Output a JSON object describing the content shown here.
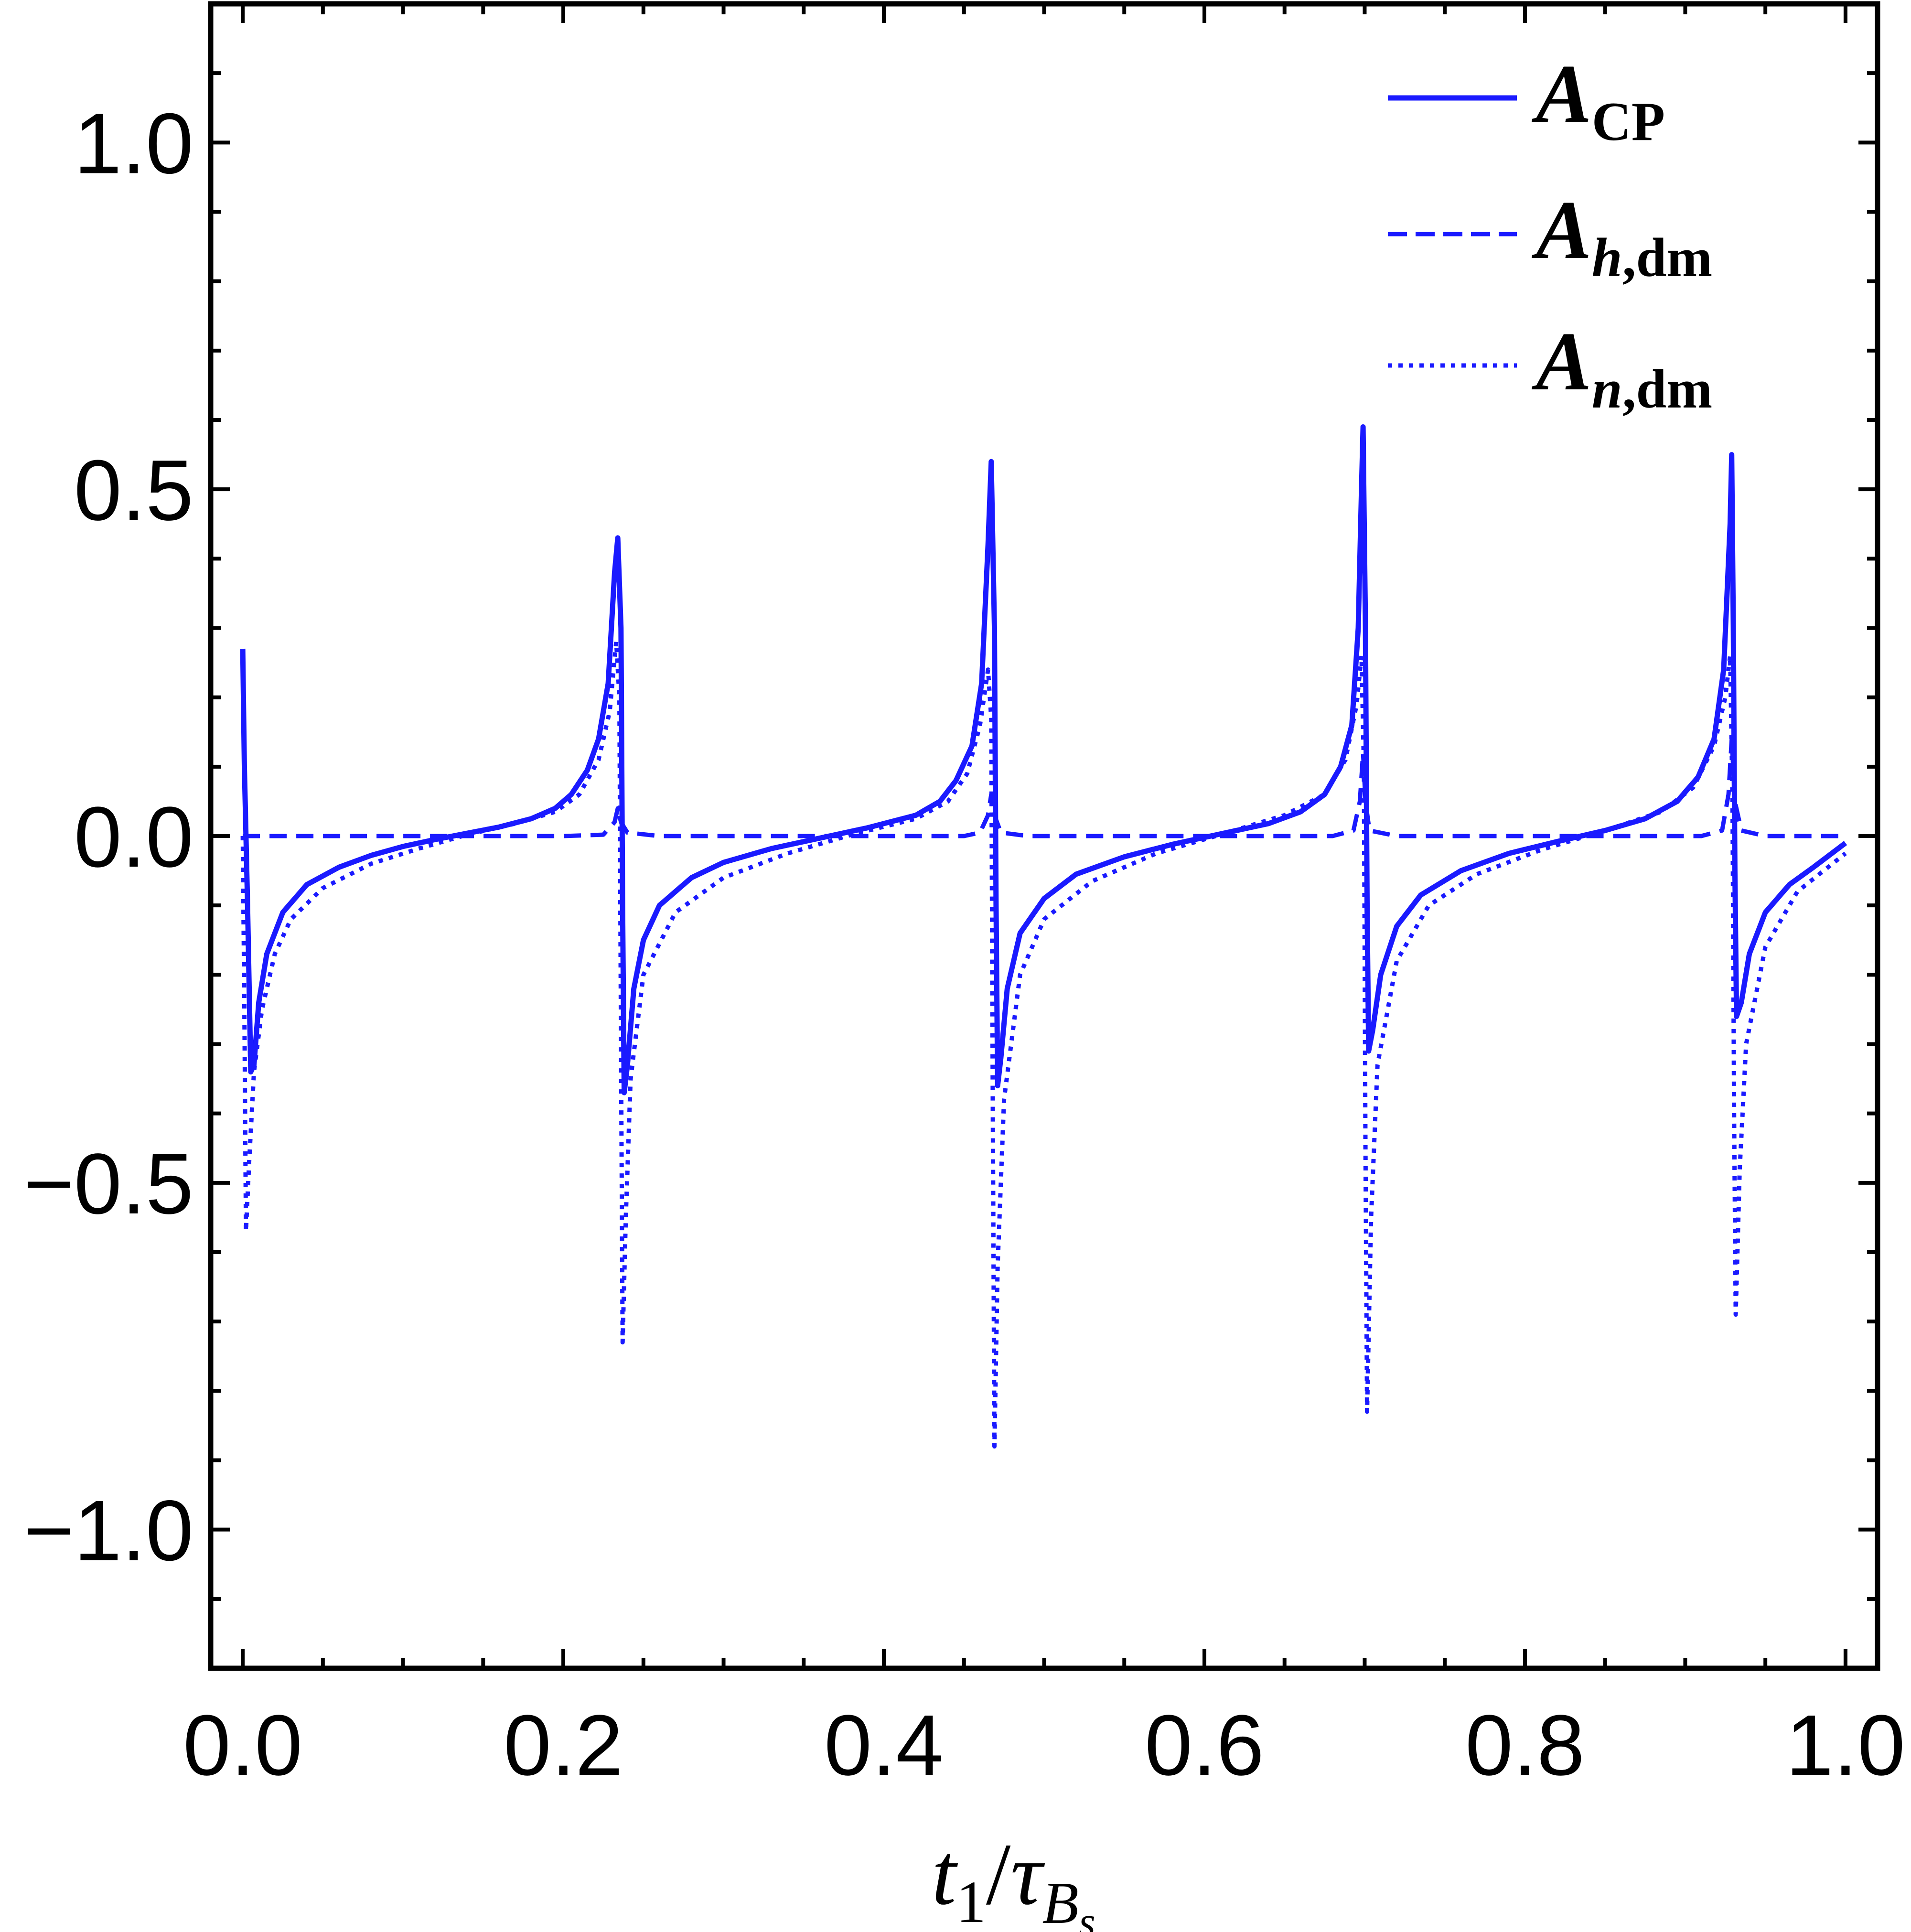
{
  "chart_data": {
    "type": "line",
    "title": "",
    "xlabel": {
      "base": "t",
      "sub1": "1",
      "sep": "/",
      "tau": "τ",
      "subB": "B",
      "subs": "s"
    },
    "ylabel": "",
    "xlim": [
      -0.02,
      1.02
    ],
    "ylim": [
      -1.2,
      1.2
    ],
    "x_ticks": [
      0.0,
      0.2,
      0.4,
      0.6,
      0.8,
      1.0
    ],
    "x_tick_labels": [
      "0.0",
      "0.2",
      "0.4",
      "0.6",
      "0.8",
      "1.0"
    ],
    "y_ticks": [
      -1.0,
      -0.5,
      0.0,
      0.5,
      1.0
    ],
    "y_tick_labels": [
      "−1.0",
      "−0.5",
      "0.0",
      "0.5",
      "1.0"
    ],
    "grid": false,
    "legend_position": "top-right",
    "color": "#1a1aff",
    "series": [
      {
        "legend": {
          "main": "A",
          "sub": "CP"
        },
        "style": "solid",
        "points": [
          [
            0.0,
            0.27
          ],
          [
            0.001,
            0.1
          ],
          [
            0.003,
            -0.1
          ],
          [
            0.005,
            -0.34
          ],
          [
            0.007,
            -0.33
          ],
          [
            0.01,
            -0.24
          ],
          [
            0.015,
            -0.17
          ],
          [
            0.025,
            -0.11
          ],
          [
            0.04,
            -0.07
          ],
          [
            0.06,
            -0.045
          ],
          [
            0.08,
            -0.028
          ],
          [
            0.1,
            -0.015
          ],
          [
            0.12,
            -0.005
          ],
          [
            0.14,
            0.004
          ],
          [
            0.16,
            0.013
          ],
          [
            0.18,
            0.025
          ],
          [
            0.195,
            0.04
          ],
          [
            0.205,
            0.06
          ],
          [
            0.215,
            0.095
          ],
          [
            0.222,
            0.14
          ],
          [
            0.228,
            0.22
          ],
          [
            0.232,
            0.38
          ],
          [
            0.234,
            0.43
          ],
          [
            0.236,
            0.3
          ],
          [
            0.237,
            -0.1
          ],
          [
            0.238,
            -0.37
          ],
          [
            0.24,
            -0.33
          ],
          [
            0.244,
            -0.22
          ],
          [
            0.25,
            -0.15
          ],
          [
            0.26,
            -0.1
          ],
          [
            0.28,
            -0.06
          ],
          [
            0.3,
            -0.038
          ],
          [
            0.33,
            -0.018
          ],
          [
            0.36,
            -0.003
          ],
          [
            0.39,
            0.012
          ],
          [
            0.42,
            0.03
          ],
          [
            0.435,
            0.05
          ],
          [
            0.445,
            0.08
          ],
          [
            0.455,
            0.13
          ],
          [
            0.461,
            0.22
          ],
          [
            0.465,
            0.42
          ],
          [
            0.467,
            0.54
          ],
          [
            0.469,
            0.3
          ],
          [
            0.47,
            -0.1
          ],
          [
            0.471,
            -0.36
          ],
          [
            0.473,
            -0.32
          ],
          [
            0.477,
            -0.22
          ],
          [
            0.485,
            -0.14
          ],
          [
            0.5,
            -0.09
          ],
          [
            0.52,
            -0.055
          ],
          [
            0.55,
            -0.03
          ],
          [
            0.58,
            -0.012
          ],
          [
            0.61,
            0.003
          ],
          [
            0.64,
            0.018
          ],
          [
            0.66,
            0.035
          ],
          [
            0.675,
            0.06
          ],
          [
            0.685,
            0.1
          ],
          [
            0.692,
            0.16
          ],
          [
            0.696,
            0.3
          ],
          [
            0.698,
            0.5
          ],
          [
            0.699,
            0.59
          ],
          [
            0.7005,
            0.3
          ],
          [
            0.7015,
            -0.1
          ],
          [
            0.7025,
            -0.31
          ],
          [
            0.705,
            -0.28
          ],
          [
            0.71,
            -0.2
          ],
          [
            0.72,
            -0.13
          ],
          [
            0.735,
            -0.085
          ],
          [
            0.76,
            -0.05
          ],
          [
            0.79,
            -0.025
          ],
          [
            0.82,
            -0.008
          ],
          [
            0.85,
            0.008
          ],
          [
            0.875,
            0.025
          ],
          [
            0.895,
            0.05
          ],
          [
            0.908,
            0.085
          ],
          [
            0.918,
            0.14
          ],
          [
            0.924,
            0.24
          ],
          [
            0.928,
            0.45
          ],
          [
            0.929,
            0.55
          ],
          [
            0.93,
            0.3
          ],
          [
            0.931,
            -0.05
          ],
          [
            0.932,
            -0.26
          ],
          [
            0.935,
            -0.24
          ],
          [
            0.94,
            -0.17
          ],
          [
            0.95,
            -0.11
          ],
          [
            0.965,
            -0.07
          ],
          [
            0.98,
            -0.045
          ],
          [
            1.0,
            -0.01
          ]
        ]
      },
      {
        "legend": {
          "main": "A",
          "sub": "h,dm"
        },
        "style": "dashed",
        "points": [
          [
            0.0,
            0.0
          ],
          [
            0.2,
            0.0
          ],
          [
            0.225,
            0.002
          ],
          [
            0.232,
            0.02
          ],
          [
            0.234,
            0.04
          ],
          [
            0.236,
            0.02
          ],
          [
            0.24,
            0.005
          ],
          [
            0.26,
            0.0
          ],
          [
            0.45,
            0.0
          ],
          [
            0.46,
            0.005
          ],
          [
            0.465,
            0.03
          ],
          [
            0.467,
            0.06
          ],
          [
            0.469,
            0.03
          ],
          [
            0.473,
            0.005
          ],
          [
            0.49,
            0.0
          ],
          [
            0.68,
            0.0
          ],
          [
            0.693,
            0.008
          ],
          [
            0.697,
            0.05
          ],
          [
            0.699,
            0.12
          ],
          [
            0.7005,
            0.05
          ],
          [
            0.703,
            0.008
          ],
          [
            0.72,
            0.0
          ],
          [
            0.91,
            0.0
          ],
          [
            0.923,
            0.008
          ],
          [
            0.927,
            0.06
          ],
          [
            0.929,
            0.14
          ],
          [
            0.931,
            0.05
          ],
          [
            0.935,
            0.008
          ],
          [
            0.95,
            0.0
          ],
          [
            1.0,
            0.0
          ]
        ]
      },
      {
        "legend": {
          "main": "A",
          "sub": "n,dm"
        },
        "style": "dotted",
        "points": [
          [
            0.0,
            0.0
          ],
          [
            0.001,
            -0.25
          ],
          [
            0.002,
            -0.57
          ],
          [
            0.004,
            -0.47
          ],
          [
            0.007,
            -0.34
          ],
          [
            0.012,
            -0.25
          ],
          [
            0.02,
            -0.17
          ],
          [
            0.03,
            -0.12
          ],
          [
            0.05,
            -0.075
          ],
          [
            0.08,
            -0.04
          ],
          [
            0.11,
            -0.018
          ],
          [
            0.14,
            0.002
          ],
          [
            0.17,
            0.018
          ],
          [
            0.195,
            0.035
          ],
          [
            0.21,
            0.06
          ],
          [
            0.222,
            0.11
          ],
          [
            0.229,
            0.18
          ],
          [
            0.233,
            0.28
          ],
          [
            0.235,
            0.2
          ],
          [
            0.236,
            -0.3
          ],
          [
            0.237,
            -0.73
          ],
          [
            0.239,
            -0.55
          ],
          [
            0.242,
            -0.35
          ],
          [
            0.25,
            -0.2
          ],
          [
            0.27,
            -0.11
          ],
          [
            0.3,
            -0.06
          ],
          [
            0.34,
            -0.025
          ],
          [
            0.38,
            0.002
          ],
          [
            0.42,
            0.025
          ],
          [
            0.44,
            0.05
          ],
          [
            0.452,
            0.09
          ],
          [
            0.46,
            0.16
          ],
          [
            0.465,
            0.24
          ],
          [
            0.467,
            0.17
          ],
          [
            0.468,
            -0.4
          ],
          [
            0.469,
            -0.88
          ],
          [
            0.471,
            -0.62
          ],
          [
            0.475,
            -0.38
          ],
          [
            0.485,
            -0.2
          ],
          [
            0.5,
            -0.12
          ],
          [
            0.53,
            -0.065
          ],
          [
            0.57,
            -0.025
          ],
          [
            0.61,
            0.002
          ],
          [
            0.65,
            0.03
          ],
          [
            0.675,
            0.06
          ],
          [
            0.688,
            0.11
          ],
          [
            0.695,
            0.19
          ],
          [
            0.698,
            0.26
          ],
          [
            0.6995,
            0.1
          ],
          [
            0.7005,
            -0.45
          ],
          [
            0.7015,
            -0.83
          ],
          [
            0.704,
            -0.55
          ],
          [
            0.708,
            -0.33
          ],
          [
            0.72,
            -0.18
          ],
          [
            0.74,
            -0.1
          ],
          [
            0.77,
            -0.055
          ],
          [
            0.81,
            -0.02
          ],
          [
            0.85,
            0.008
          ],
          [
            0.885,
            0.035
          ],
          [
            0.905,
            0.07
          ],
          [
            0.918,
            0.13
          ],
          [
            0.925,
            0.2
          ],
          [
            0.928,
            0.26
          ],
          [
            0.9295,
            0.05
          ],
          [
            0.9305,
            -0.4
          ],
          [
            0.9315,
            -0.69
          ],
          [
            0.934,
            -0.48
          ],
          [
            0.938,
            -0.3
          ],
          [
            0.95,
            -0.16
          ],
          [
            0.97,
            -0.08
          ],
          [
            1.0,
            -0.025
          ]
        ]
      }
    ]
  }
}
